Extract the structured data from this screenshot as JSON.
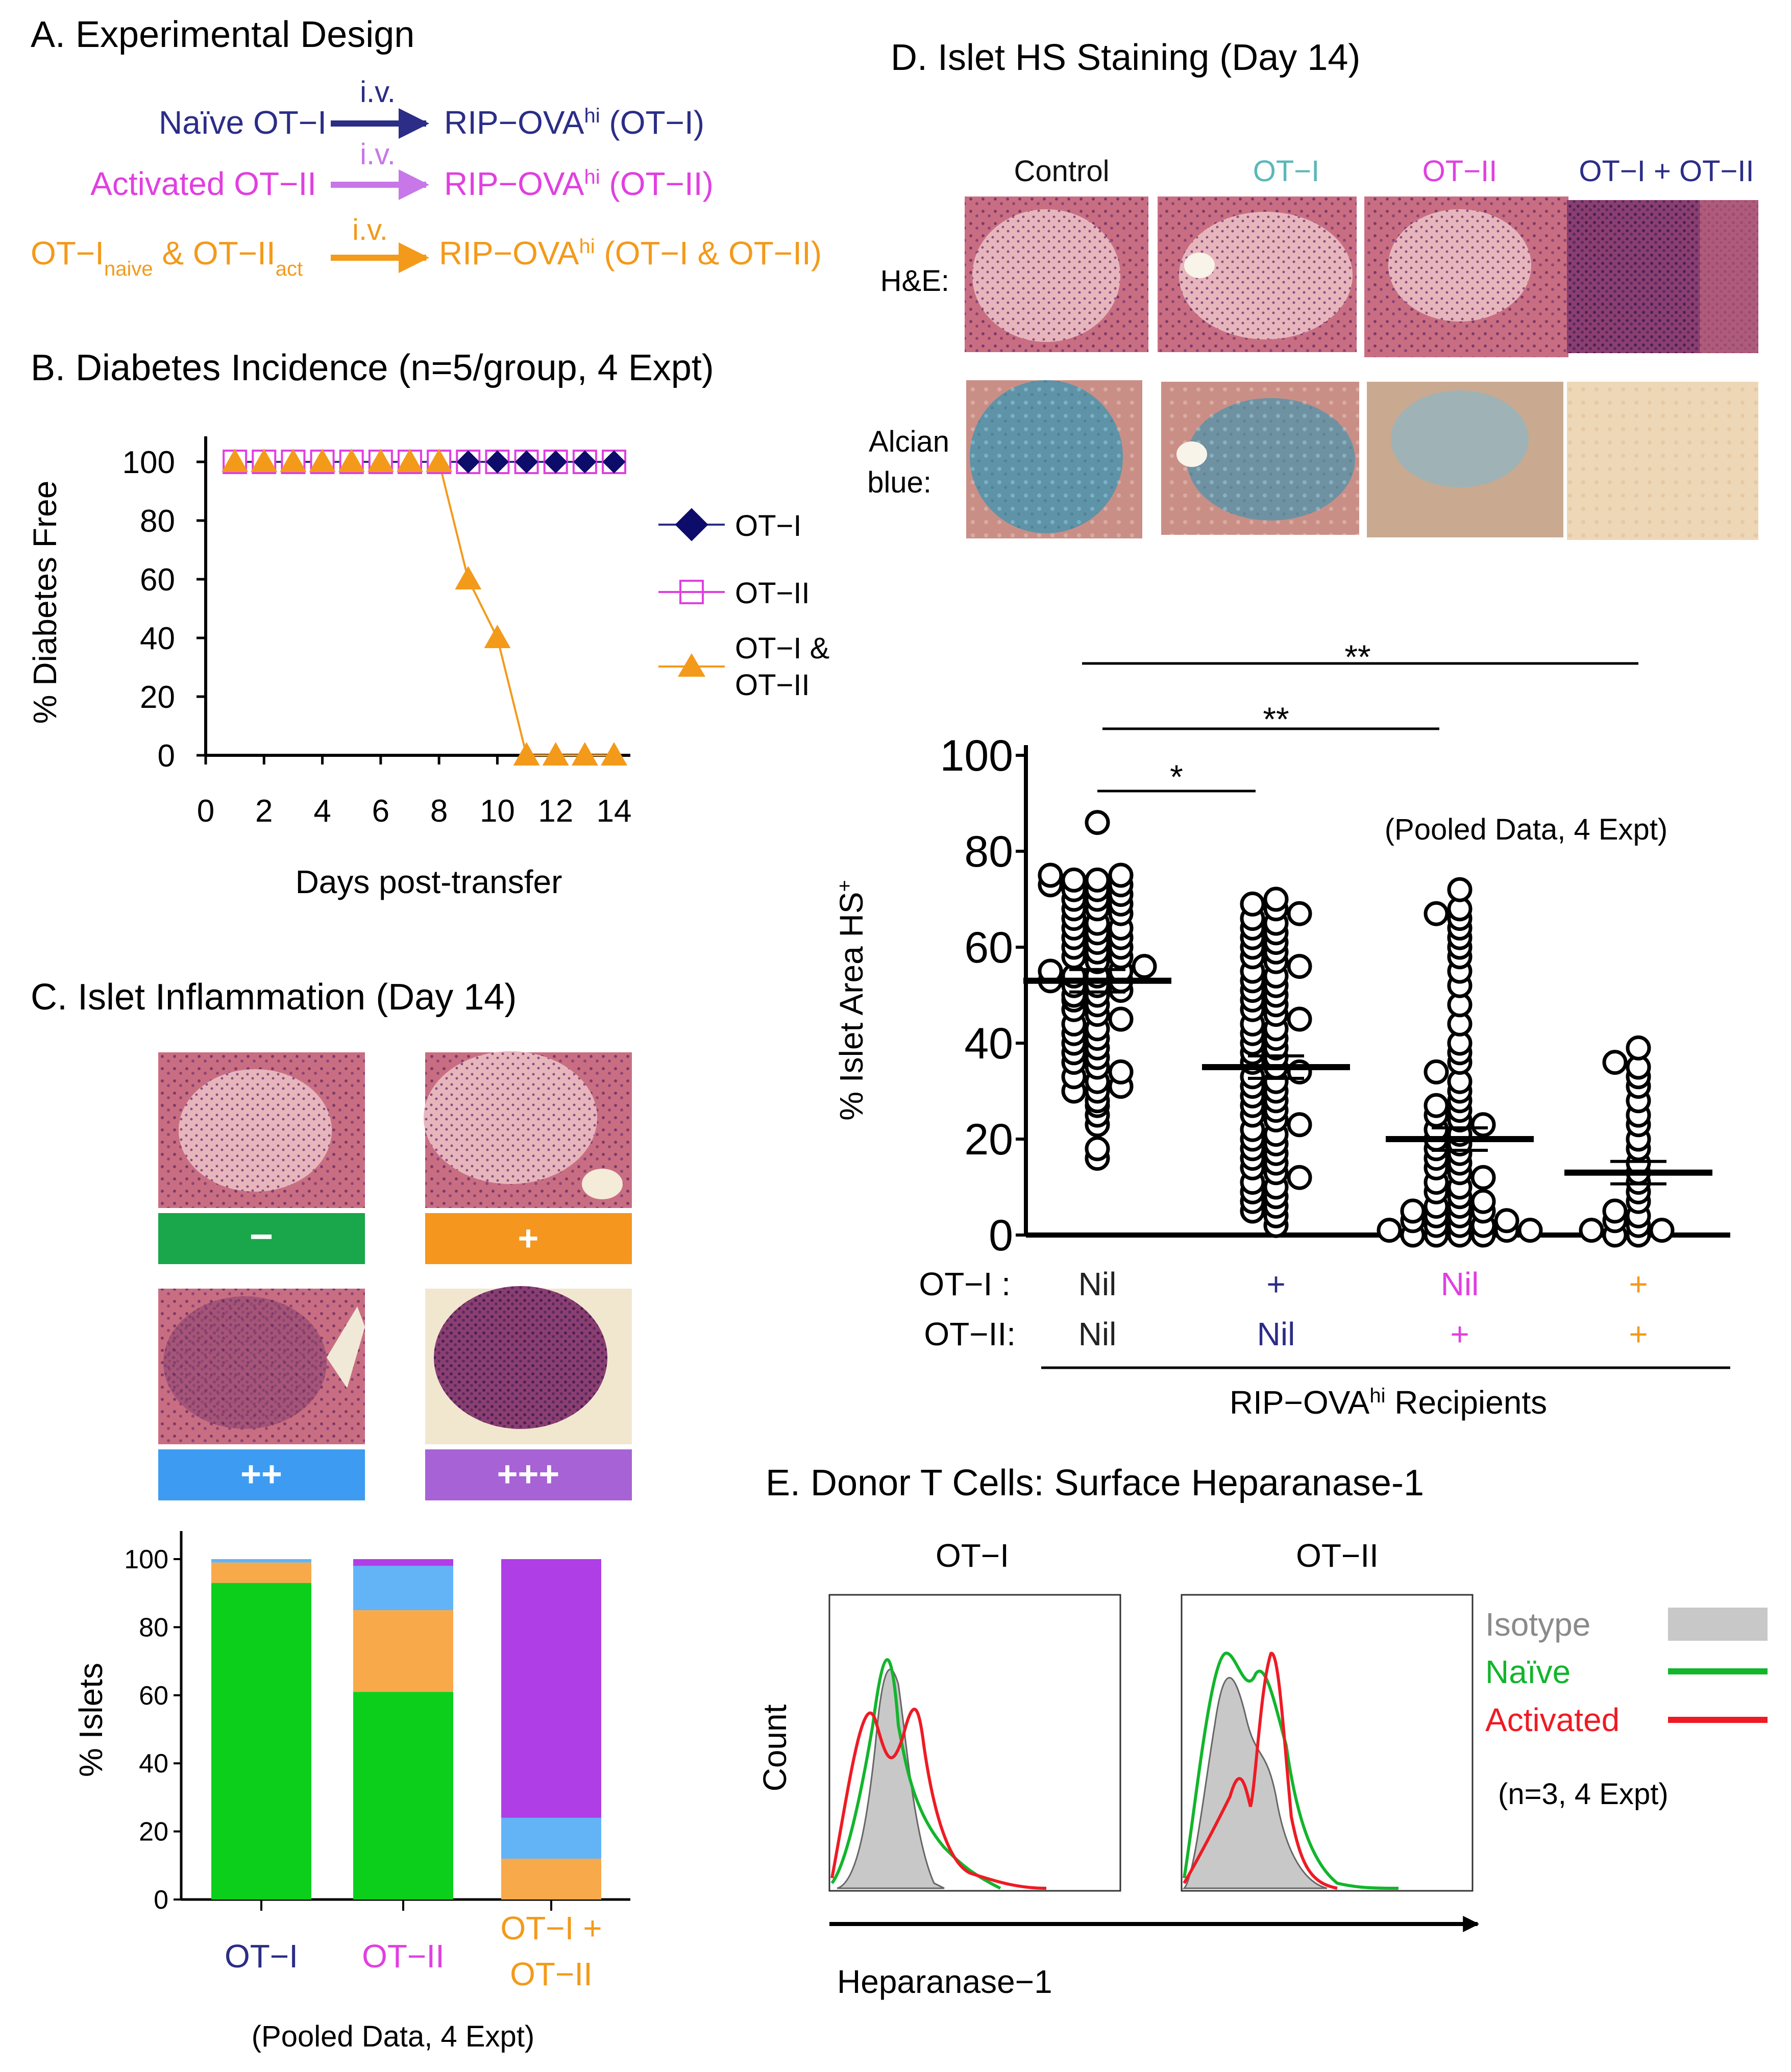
{
  "colors": {
    "navy": "#2b2d86",
    "magenta": "#e040e0",
    "violet": "#c877e8",
    "orange": "#f39a1a",
    "teal": "#5bb7b9",
    "green_neg": "#1aa64b",
    "orange_plus": "#f5961f",
    "blue_pp": "#3d9cf2",
    "purple_ppp": "#a762d6",
    "stack_green": "#0ccf1c",
    "stack_orange": "#f8a94a",
    "stack_blue": "#62b4f7",
    "stack_purple": "#b03ee6",
    "hist_isotype": "#c8c8c8",
    "hist_naive": "#12b52c",
    "hist_activated": "#ee1b24"
  },
  "panelA": {
    "title": "A. Experimental Design",
    "rows": [
      {
        "left": "Naïve OT−I",
        "route": "i.v.",
        "right_main": "RIP−OVA",
        "right_sup": "hi",
        "right_tail": " (OT−I)",
        "color": "navy"
      },
      {
        "left": "Activated OT−II",
        "route": "i.v.",
        "right_main": "RIP−OVA",
        "right_sup": "hi",
        "right_tail": " (OT−II)",
        "color": "violet"
      },
      {
        "left_a": "OT−I",
        "left_a_sub": "naive",
        "left_b": " & OT−II",
        "left_b_sub": "act",
        "route": "i.v.",
        "right_main": "RIP−OVA",
        "right_sup": "hi",
        "right_tail": " (OT−I & OT−II)",
        "color": "orange"
      }
    ]
  },
  "panelB": {
    "title": "B. Diabetes Incidence (n=5/group, 4 Expt)",
    "xlabel": "Days post-transfer",
    "ylabel": "% Diabetes Free",
    "xticks": [
      "0",
      "2",
      "4",
      "6",
      "8",
      "10",
      "12",
      "14"
    ],
    "yticks": [
      "0",
      "20",
      "40",
      "60",
      "80",
      "100"
    ],
    "legend": [
      "OT−I",
      "OT−II",
      "OT−I &",
      "OT−II"
    ]
  },
  "panelC": {
    "title": "C. Islet Inflammation (Day 14)",
    "grades": [
      "−",
      "+",
      "++",
      "+++"
    ],
    "ylabel": "% Islets",
    "yticks": [
      "0",
      "20",
      "40",
      "60",
      "80",
      "100"
    ],
    "xlabels": [
      "OT−I",
      "OT−II",
      "OT−I +",
      "OT−II"
    ],
    "footnote": "(Pooled Data, 4 Expt)"
  },
  "panelD": {
    "title": "D. Islet HS Staining (Day 14)",
    "col_headers": [
      "Control",
      "OT−I",
      "OT−II",
      "OT−I + OT−II"
    ],
    "row_headers": [
      "H&E:",
      "Alcian",
      "blue:"
    ],
    "ylabel": "% Islet Area HS",
    "ylabel_sup": "+",
    "yticks": [
      "0",
      "20",
      "40",
      "60",
      "80",
      "100"
    ],
    "note": "(Pooled Data, 4 Expt)",
    "row1_label": "OT−I :",
    "row2_label": "OT−II:",
    "row1_values": [
      "Nil",
      "+",
      "Nil",
      "+"
    ],
    "row2_values": [
      "Nil",
      "Nil",
      "+",
      "+"
    ],
    "recipients_main": "RIP−OVA",
    "recipients_sup": "hi",
    "recipients_tail": " Recipients",
    "sig": [
      "*",
      "**",
      "**"
    ]
  },
  "panelE": {
    "title": "E. Donor T Cells: Surface Heparanase-1",
    "plot_titles": [
      "OT−I",
      "OT−II"
    ],
    "ylabel": "Count",
    "xlabel": "Heparanase−1",
    "legend": [
      "Isotype",
      "Naïve",
      "Activated"
    ],
    "note": "(n=3, 4 Expt)"
  },
  "chart_data": [
    {
      "type": "line",
      "title": "B. Diabetes Incidence (n=5/group, 4 Expt)",
      "xlabel": "Days post-transfer",
      "ylabel": "% Diabetes Free",
      "xlim": [
        0,
        14
      ],
      "ylim": [
        0,
        100
      ],
      "grid": false,
      "legend_position": "right",
      "x": [
        1,
        2,
        3,
        4,
        5,
        6,
        7,
        8,
        9,
        10,
        11,
        12,
        13,
        14
      ],
      "series": [
        {
          "name": "OT−I",
          "values": [
            100,
            100,
            100,
            100,
            100,
            100,
            100,
            100,
            100,
            100,
            100,
            100,
            100,
            100
          ]
        },
        {
          "name": "OT−II",
          "values": [
            100,
            100,
            100,
            100,
            100,
            100,
            100,
            100,
            100,
            100,
            100,
            100,
            100,
            100
          ]
        },
        {
          "name": "OT−I & OT−II",
          "values": [
            100,
            100,
            100,
            100,
            100,
            100,
            100,
            100,
            60,
            40,
            0,
            0,
            0,
            0
          ]
        }
      ]
    },
    {
      "type": "bar",
      "stacked": true,
      "ylabel": "% Islets",
      "ylim": [
        0,
        100
      ],
      "categories": [
        "OT−I",
        "OT−II",
        "OT−I + OT−II"
      ],
      "series": [
        {
          "name": "−",
          "values": [
            93,
            61,
            0
          ]
        },
        {
          "name": "+",
          "values": [
            6,
            24,
            12
          ]
        },
        {
          "name": "++",
          "values": [
            1,
            13,
            12
          ]
        },
        {
          "name": "+++",
          "values": [
            0,
            2,
            76
          ]
        }
      ]
    },
    {
      "type": "scatter",
      "ylabel": "% Islet Area HS+",
      "ylim": [
        0,
        100
      ],
      "categories": [
        "Nil/Nil",
        "+/Nil",
        "Nil/+",
        "+/+"
      ],
      "means": [
        53,
        35,
        20,
        13
      ],
      "series": [
        {
          "values": [
            16,
            18,
            23,
            25,
            27,
            28,
            30,
            30,
            31,
            32,
            33,
            34,
            35,
            36,
            37,
            38,
            39,
            40,
            41,
            42,
            43,
            44,
            45,
            46,
            47,
            48,
            49,
            50,
            50,
            51,
            52,
            52,
            53,
            53,
            54,
            54,
            55,
            55,
            56,
            57,
            58,
            58,
            59,
            60,
            60,
            61,
            62,
            62,
            63,
            64,
            64,
            65,
            66,
            67,
            68,
            68,
            69,
            70,
            70,
            71,
            72,
            72,
            73,
            73,
            74,
            74,
            75,
            75,
            86
          ]
        },
        {
          "values": [
            2,
            4,
            5,
            6,
            7,
            8,
            9,
            10,
            11,
            12,
            13,
            14,
            15,
            16,
            17,
            18,
            19,
            20,
            21,
            22,
            23,
            24,
            25,
            26,
            27,
            28,
            29,
            30,
            31,
            32,
            33,
            34,
            35,
            36,
            37,
            38,
            39,
            40,
            41,
            42,
            43,
            44,
            45,
            46,
            47,
            48,
            49,
            50,
            51,
            52,
            53,
            54,
            55,
            56,
            57,
            58,
            59,
            60,
            61,
            62,
            63,
            64,
            65,
            66,
            67,
            68,
            69,
            70
          ]
        },
        {
          "values": [
            0,
            0,
            0,
            0,
            1,
            1,
            1,
            2,
            2,
            2,
            3,
            3,
            4,
            4,
            5,
            5,
            6,
            6,
            7,
            8,
            9,
            10,
            11,
            12,
            13,
            14,
            15,
            16,
            17,
            18,
            19,
            20,
            21,
            22,
            23,
            24,
            25,
            26,
            27,
            28,
            30,
            32,
            34,
            36,
            38,
            40,
            44,
            48,
            52,
            55,
            58,
            60,
            62,
            64,
            66,
            67,
            68,
            72
          ]
        },
        {
          "values": [
            0,
            0,
            1,
            1,
            2,
            3,
            4,
            5,
            7,
            9,
            11,
            13,
            15,
            18,
            20,
            23,
            25,
            28,
            31,
            33,
            35,
            36,
            39
          ]
        }
      ]
    }
  ]
}
